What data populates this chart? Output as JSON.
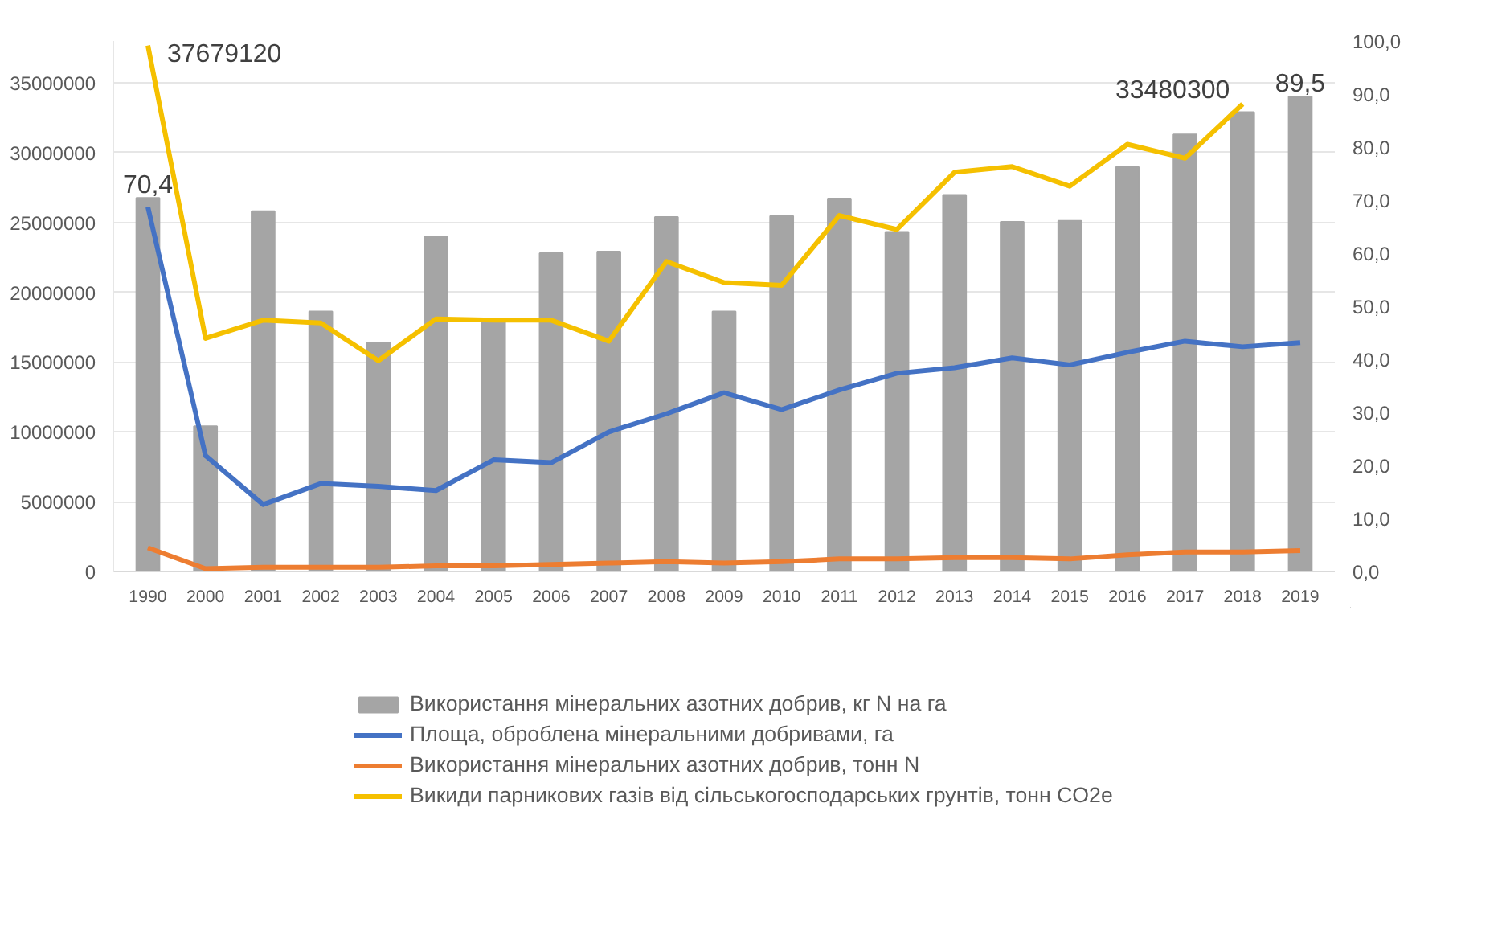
{
  "chart_data": {
    "type": "bar",
    "categories": [
      "1990",
      "2000",
      "2001",
      "2002",
      "2003",
      "2004",
      "2005",
      "2006",
      "2007",
      "2008",
      "2009",
      "2010",
      "2011",
      "2012",
      "2013",
      "2014",
      "2015",
      "2016",
      "2017",
      "2018",
      "2019"
    ],
    "series": [
      {
        "name": "Використання мінеральних азотних добрив, кг N на га",
        "axis": "y2",
        "color": "#a5a5a5",
        "values": [
          70.4,
          27.4,
          67.9,
          49.0,
          43.2,
          63.2,
          47.4,
          60.0,
          60.3,
          66.8,
          49.0,
          67.0,
          70.3,
          64.0,
          71.0,
          65.9,
          66.1,
          76.2,
          82.4,
          86.6,
          89.5
        ],
        "value_labels": [
          "70,4",
          null,
          null,
          null,
          null,
          null,
          null,
          null,
          null,
          null,
          null,
          null,
          null,
          null,
          null,
          null,
          null,
          null,
          null,
          null,
          "89,5"
        ]
      },
      {
        "name": "Площа, оброблена мінеральними добривами, га",
        "type": "line",
        "color": "#4472c4",
        "values": [
          26100000,
          8300000,
          4800000,
          6300000,
          6100000,
          5800000,
          8000000,
          7800000,
          10000000,
          11300000,
          12800000,
          11600000,
          13000000,
          14200000,
          14600000,
          15300000,
          14800000,
          15700000,
          16500000,
          16100000,
          16400000
        ]
      },
      {
        "name": "Використання мінеральних азотних добрив, тонн N",
        "type": "line",
        "color": "#ed7d31",
        "values": [
          1700000,
          200000,
          300000,
          300000,
          300000,
          400000,
          400000,
          500000,
          600000,
          700000,
          600000,
          700000,
          900000,
          900000,
          1000000,
          1000000,
          900000,
          1200000,
          1400000,
          1400000,
          1500000
        ]
      },
      {
        "name": "Викиди парникових газів від сільськогосподарських грунтів, тонн CO2e",
        "type": "line",
        "color": "#f5c000",
        "values": [
          37679120,
          16700000,
          18000000,
          17800000,
          15100000,
          18100000,
          18000000,
          18000000,
          16500000,
          22200000,
          20700000,
          20500000,
          25500000,
          24500000,
          28600000,
          29000000,
          27600000,
          30600000,
          29600000,
          33480300,
          null
        ],
        "value_labels": [
          "37679120",
          null,
          null,
          null,
          null,
          null,
          null,
          null,
          null,
          null,
          null,
          null,
          null,
          null,
          null,
          null,
          null,
          null,
          null,
          "33480300",
          null
        ]
      }
    ],
    "ylim": [
      0,
      38000000
    ],
    "yticks": [
      0,
      5000000,
      10000000,
      15000000,
      20000000,
      25000000,
      30000000,
      35000000
    ],
    "y2lim": [
      0,
      100
    ],
    "y2ticks": [
      {
        "value": 0,
        "label": "0,0"
      },
      {
        "value": 10,
        "label": "10,0"
      },
      {
        "value": 20,
        "label": "20,0"
      },
      {
        "value": 30,
        "label": "30,0"
      },
      {
        "value": 40,
        "label": "40,0"
      },
      {
        "value": 50,
        "label": "50,0"
      },
      {
        "value": 60,
        "label": "60,0"
      },
      {
        "value": 70,
        "label": "70,0"
      },
      {
        "value": 80,
        "label": "80,0"
      },
      {
        "value": 90,
        "label": "90,0"
      },
      {
        "value": 100,
        "label": "100,0"
      }
    ],
    "grid": "y",
    "legend": "bottom",
    "line_style": "solid",
    "marker": "none"
  }
}
